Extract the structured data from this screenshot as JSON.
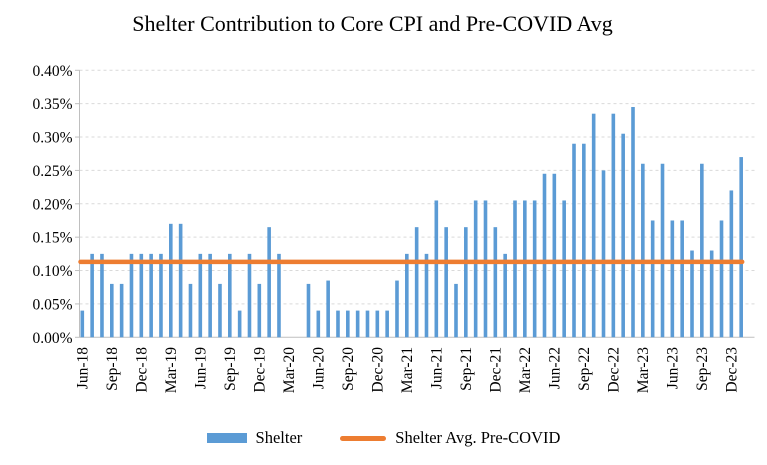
{
  "title": "Shelter Contribution to Core CPI and Pre-COVID Avg",
  "chart_data": {
    "type": "bar",
    "title": "Shelter Contribution to Core CPI and Pre-COVID Avg",
    "categories": [
      "Jun-18",
      "Jul-18",
      "Aug-18",
      "Sep-18",
      "Oct-18",
      "Nov-18",
      "Dec-18",
      "Jan-19",
      "Feb-19",
      "Mar-19",
      "Apr-19",
      "May-19",
      "Jun-19",
      "Jul-19",
      "Aug-19",
      "Sep-19",
      "Oct-19",
      "Nov-19",
      "Dec-19",
      "Jan-20",
      "Feb-20",
      "Mar-20",
      "Apr-20",
      "May-20",
      "Jun-20",
      "Jul-20",
      "Aug-20",
      "Sep-20",
      "Oct-20",
      "Nov-20",
      "Dec-20",
      "Jan-21",
      "Feb-21",
      "Mar-21",
      "Apr-21",
      "May-21",
      "Jun-21",
      "Jul-21",
      "Aug-21",
      "Sep-21",
      "Oct-21",
      "Nov-21",
      "Dec-21",
      "Jan-22",
      "Feb-22",
      "Mar-22",
      "Apr-22",
      "May-22",
      "Jun-22",
      "Jul-22",
      "Aug-22",
      "Sep-22",
      "Oct-22",
      "Nov-22",
      "Dec-22",
      "Jan-23",
      "Feb-23",
      "Mar-23",
      "Apr-23",
      "May-23",
      "Jun-23",
      "Jul-23",
      "Aug-23",
      "Sep-23",
      "Oct-23",
      "Nov-23",
      "Dec-23",
      "Jan-24"
    ],
    "series": [
      {
        "name": "Shelter",
        "type": "bar",
        "color": "#5B9BD5",
        "values": [
          0.04,
          0.125,
          0.125,
          0.08,
          0.08,
          0.125,
          0.125,
          0.125,
          0.125,
          0.17,
          0.17,
          0.08,
          0.125,
          0.125,
          0.08,
          0.125,
          0.04,
          0.125,
          0.08,
          0.165,
          0.125,
          0.0,
          0.0,
          0.08,
          0.04,
          0.085,
          0.04,
          0.04,
          0.04,
          0.04,
          0.04,
          0.04,
          0.085,
          0.125,
          0.165,
          0.125,
          0.205,
          0.165,
          0.08,
          0.165,
          0.205,
          0.205,
          0.165,
          0.125,
          0.205,
          0.205,
          0.205,
          0.245,
          0.245,
          0.205,
          0.29,
          0.29,
          0.335,
          0.25,
          0.335,
          0.305,
          0.345,
          0.26,
          0.175,
          0.26,
          0.175,
          0.175,
          0.13,
          0.26,
          0.13,
          0.175,
          0.22,
          0.27
        ]
      },
      {
        "name": "Shelter Avg. Pre-COVID",
        "type": "line",
        "color": "#ED7D31",
        "value": 0.113
      }
    ],
    "ylim": [
      0,
      0.4
    ],
    "ytick_step": 0.05,
    "y_tick_labels": [
      "0.00%",
      "0.05%",
      "0.10%",
      "0.15%",
      "0.20%",
      "0.25%",
      "0.30%",
      "0.35%",
      "0.40%"
    ],
    "x_tick_labels": [
      "Jun-18",
      "Sep-18",
      "Dec-18",
      "Mar-19",
      "Jun-19",
      "Sep-19",
      "Dec-19",
      "Mar-20",
      "Jun-20",
      "Sep-20",
      "Dec-20",
      "Mar-21",
      "Jun-21",
      "Sep-21",
      "Dec-21",
      "Mar-22",
      "Jun-22",
      "Sep-22",
      "Dec-22",
      "Mar-23",
      "Jun-23",
      "Sep-23",
      "Dec-23"
    ],
    "x_label_every": 3,
    "grid": "horizontal-dashed",
    "gridline_color": "#D9D9D9",
    "axis_line_color": "#BFBFBF",
    "legend_position": "bottom"
  },
  "legend": {
    "items": [
      {
        "label": "Shelter",
        "color": "#5B9BD5",
        "swatch": "rect"
      },
      {
        "label": "Shelter Avg. Pre-COVID",
        "color": "#ED7D31",
        "swatch": "line"
      }
    ]
  }
}
